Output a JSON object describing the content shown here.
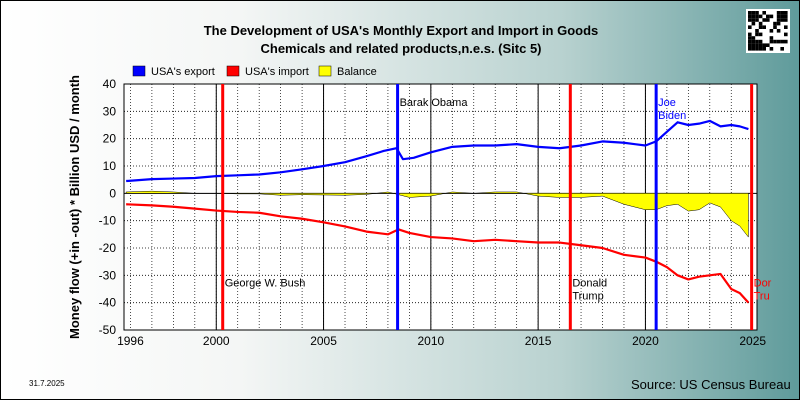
{
  "page": {
    "date": "31.7.2025",
    "source": "Source: US Census Bureau",
    "qr_icon": "qr-code-icon"
  },
  "colors": {
    "export": "#0000ff",
    "import": "#ff0000",
    "balance": "#ffff00",
    "plot_bg": "#ffffff",
    "grid": "#000000"
  },
  "chart_data": {
    "type": "line",
    "title": "The Development of USA's Monthly Export and Import in Goods",
    "subtitle": "Chemicals and related products,n.e.s. (Sitc 5)",
    "ylabel": "Money flow (+in -out) * Billion USD / month",
    "xlabel": "",
    "xlim": [
      1995.7,
      2025.2
    ],
    "ylim": [
      -50,
      40
    ],
    "x_ticks": [
      1996,
      2000,
      2005,
      2010,
      2015,
      2020,
      2025
    ],
    "y_ticks": [
      40,
      30,
      20,
      10,
      0,
      -10,
      -20,
      -30,
      -40,
      -50
    ],
    "grid": true,
    "legend": {
      "position": "top-left",
      "entries": [
        "USA's export",
        "USA's import",
        "Balance"
      ]
    },
    "series": [
      {
        "name": "USA's export",
        "color": "#0000ff",
        "x": [
          1995.8,
          1997,
          1998,
          1999,
          2000,
          2001,
          2002,
          2003,
          2004,
          2005,
          2006,
          2007,
          2007.8,
          2008.4,
          2008.7,
          2009.2,
          2010,
          2011,
          2012,
          2013,
          2014,
          2015,
          2016,
          2017,
          2018,
          2019,
          2020,
          2020.5,
          2021,
          2021.5,
          2022,
          2022.5,
          2023,
          2023.5,
          2024,
          2024.4,
          2024.8
        ],
        "values": [
          4.5,
          5.2,
          5.4,
          5.6,
          6.3,
          6.6,
          6.9,
          7.7,
          8.8,
          10.0,
          11.4,
          13.6,
          15.5,
          16.5,
          12.5,
          13.0,
          15.0,
          17.0,
          17.5,
          17.5,
          18.0,
          17.0,
          16.5,
          17.5,
          19.0,
          18.5,
          17.5,
          19.0,
          22.5,
          26.0,
          25.0,
          25.5,
          26.5,
          24.5,
          25.0,
          24.5,
          23.5
        ]
      },
      {
        "name": "USA's import",
        "color": "#ff0000",
        "x": [
          1995.8,
          1997,
          1998,
          1999,
          2000,
          2001,
          2002,
          2003,
          2004,
          2005,
          2006,
          2007,
          2008,
          2008.5,
          2009,
          2010,
          2011,
          2012,
          2013,
          2014,
          2015,
          2016,
          2017,
          2018,
          2019,
          2020,
          2020.5,
          2021,
          2021.5,
          2022,
          2022.5,
          2023,
          2023.5,
          2024,
          2024.4,
          2024.8
        ],
        "values": [
          -4.0,
          -4.4,
          -4.9,
          -5.6,
          -6.3,
          -6.8,
          -7.1,
          -8.4,
          -9.3,
          -10.6,
          -12.1,
          -14.0,
          -15.0,
          -13.2,
          -14.5,
          -16.0,
          -16.5,
          -17.5,
          -17.0,
          -17.5,
          -18.0,
          -18.0,
          -19.0,
          -20.0,
          -22.5,
          -23.5,
          -25.0,
          -27.0,
          -30.0,
          -31.5,
          -30.5,
          -30.0,
          -29.5,
          -35.0,
          -36.5,
          -40.0
        ]
      },
      {
        "name": "Balance",
        "color": "#ffff00",
        "x": [
          1995.8,
          1997,
          1998,
          1999,
          2000,
          2001,
          2002,
          2003,
          2004,
          2005,
          2006,
          2007,
          2008,
          2009,
          2010,
          2011,
          2012,
          2013,
          2014,
          2015,
          2016,
          2017,
          2018,
          2019,
          2020,
          2020.5,
          2021,
          2021.5,
          2022,
          2022.5,
          2023,
          2023.5,
          2024,
          2024.4,
          2024.8
        ],
        "values": [
          0.5,
          0.8,
          0.5,
          0.0,
          0.0,
          -0.2,
          -0.2,
          -0.7,
          -0.5,
          -0.6,
          -0.7,
          -0.4,
          0.5,
          -1.5,
          -1.0,
          0.5,
          0.0,
          0.5,
          0.5,
          -1.0,
          -1.5,
          -1.5,
          -1.0,
          -4.0,
          -6.0,
          -6.0,
          -4.5,
          -4.0,
          -6.5,
          -6.0,
          -3.5,
          -5.0,
          -10.0,
          -12.0,
          -16.0
        ]
      }
    ],
    "annotations": [
      {
        "x": 2000.3,
        "label_lines": [
          "George W. Bush"
        ],
        "color": "#ff0000",
        "text_color": "#000000",
        "label_y": -34
      },
      {
        "x": 2008.45,
        "label_lines": [
          "Barak Obama"
        ],
        "color": "#0000ff",
        "text_color": "#000000",
        "label_y": 32
      },
      {
        "x": 2016.5,
        "label_lines": [
          "Donald",
          "Trump"
        ],
        "color": "#ff0000",
        "text_color": "#000000",
        "label_y": -34
      },
      {
        "x": 2020.5,
        "label_lines": [
          "Joe",
          "Biden"
        ],
        "color": "#0000ff",
        "text_color": "#0000ff",
        "label_y": 32
      },
      {
        "x": 2024.95,
        "label_lines": [
          "Dor",
          "Tru"
        ],
        "color": "#ff0000",
        "text_color": "#ff0000",
        "label_y": -34
      }
    ]
  }
}
